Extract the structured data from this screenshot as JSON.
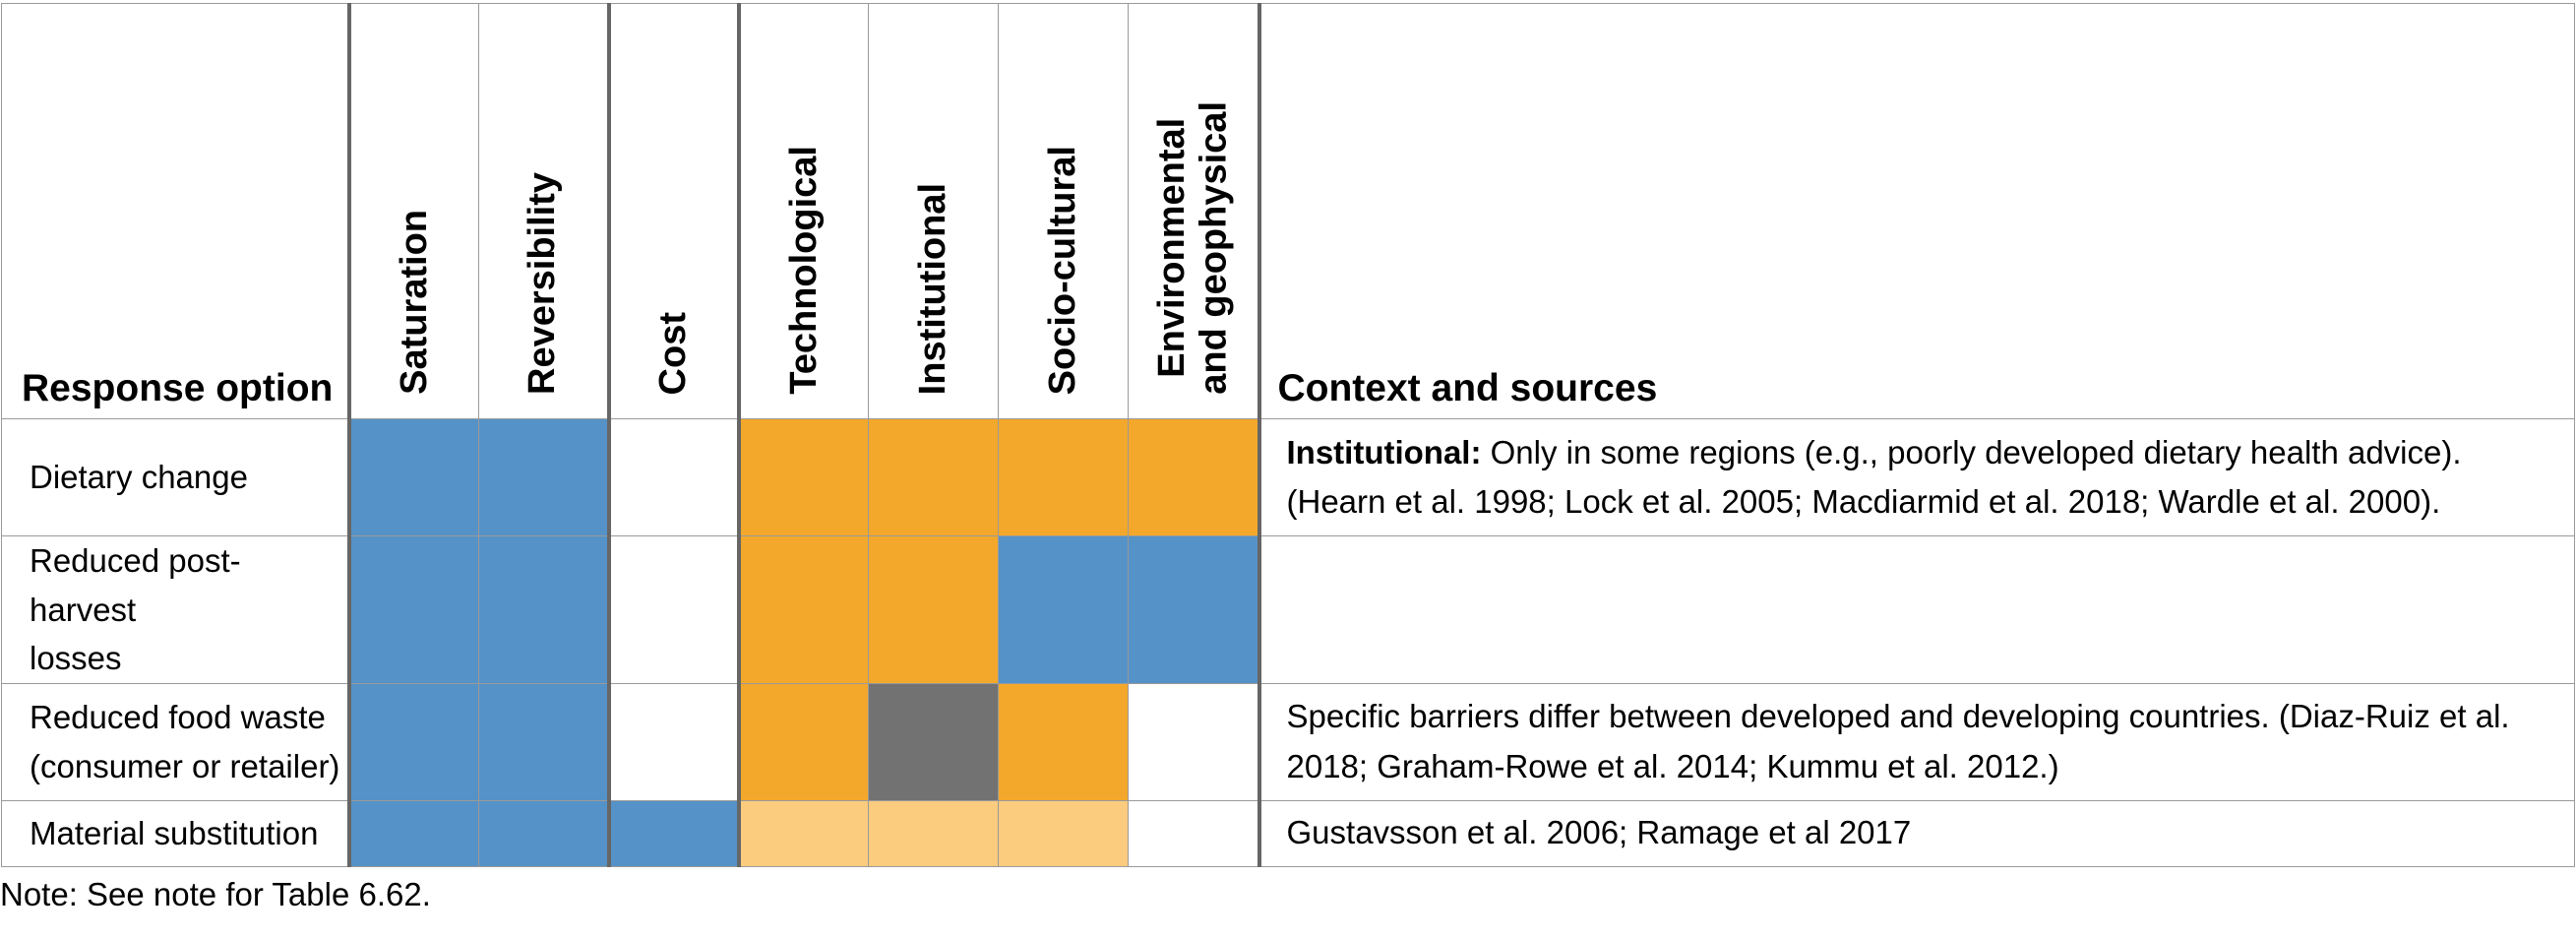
{
  "colors": {
    "blue": "#5592c7",
    "orange": "#f3a82b",
    "light_orange": "#fbcb7e",
    "grey": "#727272",
    "white": "#ffffff"
  },
  "header": {
    "response_option": "Response option",
    "saturation": "Saturation",
    "reversibility": "Reversibility",
    "cost": "Cost",
    "technological": "Technological",
    "institutional": "Institutional",
    "socio_cultural": "Socio-cultural",
    "environmental_1": "Environmental",
    "environmental_2": "and geophysical",
    "context": "Context and sources"
  },
  "rows": [
    {
      "option": "Dietary change",
      "option_line2": "",
      "cells": [
        "blue",
        "blue",
        "white",
        "orange",
        "orange",
        "orange",
        "orange"
      ],
      "context_bold": "Institutional:",
      "context": " Only in some regions (e.g., poorly developed dietary health advice). (Hearn et al. 1998; Lock et al. 2005; Macdiarmid et al. 2018; Wardle et al. 2000)."
    },
    {
      "option": "Reduced post-harvest",
      "option_line2": "losses",
      "cells": [
        "blue",
        "blue",
        "white",
        "orange",
        "orange",
        "blue",
        "blue"
      ],
      "context_bold": "",
      "context": ""
    },
    {
      "option": "Reduced food waste",
      "option_line2": "(consumer or retailer)",
      "cells": [
        "blue",
        "blue",
        "white",
        "orange",
        "grey",
        "orange",
        "white"
      ],
      "context_bold": "",
      "context": "Specific barriers differ between developed and developing countries. (Diaz-Ruiz et al. 2018; Graham-Rowe et al. 2014; Kummu et al. 2012.)"
    },
    {
      "option": "Material substitution",
      "option_line2": "",
      "cells": [
        "blue",
        "blue",
        "blue",
        "light_orange",
        "light_orange",
        "light_orange",
        "white"
      ],
      "context_bold": "",
      "context": "Gustavsson et al. 2006; Ramage et al 2017"
    }
  ],
  "note": "Note: See note for Table 6.62."
}
